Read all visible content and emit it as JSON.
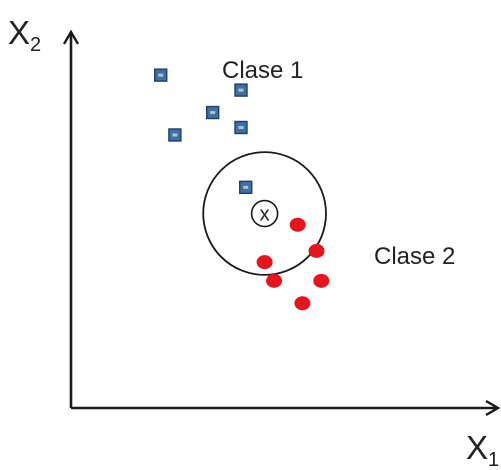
{
  "axes": {
    "x_label": "X",
    "x_sub": "1",
    "y_label": "X",
    "y_sub": "2"
  },
  "classes": [
    {
      "name": "Clase 1",
      "marker": "square",
      "color": "#3f6fa0",
      "border": "#1f3f66"
    },
    {
      "name": "Clase 2",
      "marker": "circle",
      "color": "#e8141d"
    }
  ],
  "query_point": {
    "symbol": "x"
  },
  "chart_data": {
    "type": "scatter",
    "series": [
      {
        "name": "Clase 1",
        "points": [
          [
            1.9,
            8.9
          ],
          [
            3.6,
            8.5
          ],
          [
            3.0,
            7.9
          ],
          [
            3.6,
            7.5
          ],
          [
            2.2,
            7.3
          ],
          [
            3.7,
            5.9
          ]
        ]
      },
      {
        "name": "Clase 2",
        "points": [
          [
            4.8,
            4.9
          ],
          [
            5.2,
            4.2
          ],
          [
            4.1,
            3.9
          ],
          [
            4.3,
            3.4
          ],
          [
            5.3,
            3.4
          ],
          [
            4.9,
            2.8
          ]
        ]
      }
    ],
    "query": {
      "x": 4.1,
      "y": 5.2,
      "label": "x"
    },
    "neighborhood_radius": 1.3,
    "xlim": [
      0,
      9
    ],
    "ylim": [
      0,
      10
    ],
    "grid": false
  }
}
